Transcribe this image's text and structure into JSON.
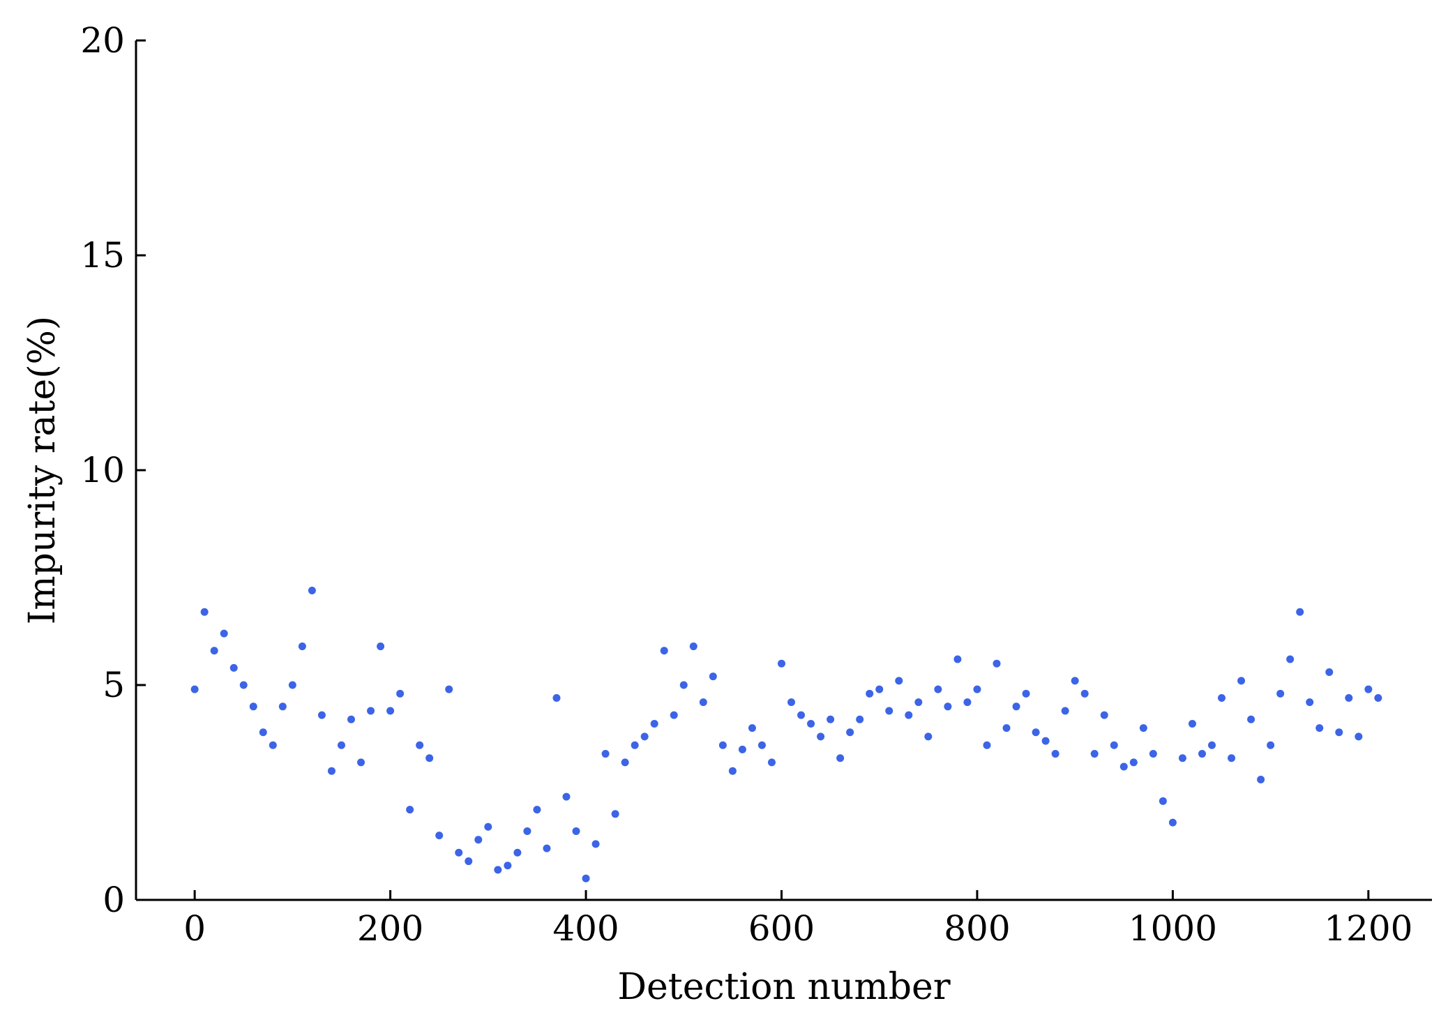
{
  "chart_data": {
    "type": "scatter",
    "xlabel": "Detection number",
    "ylabel": "Impurity rate(%)",
    "xlim": [
      -60,
      1265
    ],
    "ylim": [
      0,
      20
    ],
    "xticks": [
      0,
      200,
      400,
      600,
      800,
      1000,
      1200
    ],
    "yticks": [
      0,
      5,
      10,
      15,
      20
    ],
    "xtick_labels": [
      "0",
      "200",
      "400",
      "600",
      "800",
      "1000",
      "1200"
    ],
    "ytick_labels": [
      "0",
      "5",
      "10",
      "15",
      "20"
    ],
    "grid": false,
    "legend": "none",
    "marker_color": "#3c64e6",
    "series": [
      {
        "x": [
          0,
          10,
          20,
          30,
          40,
          50,
          60,
          70,
          80,
          90,
          100,
          110,
          120,
          130,
          140,
          150,
          160,
          170,
          180,
          190,
          200,
          210,
          220,
          230,
          240,
          250,
          260,
          270,
          280,
          290,
          300,
          310,
          320,
          330,
          340,
          350,
          360,
          370,
          380,
          390,
          400,
          410,
          420,
          430,
          440,
          450,
          460,
          470,
          480,
          490,
          500,
          510,
          520,
          530,
          540,
          550,
          560,
          570,
          580,
          590,
          600,
          610,
          620,
          630,
          640,
          650,
          660,
          670,
          680,
          690,
          700,
          710,
          720,
          730,
          740,
          750,
          760,
          770,
          780,
          790,
          800,
          810,
          820,
          830,
          840,
          850,
          860,
          870,
          880,
          890,
          900,
          910,
          920,
          930,
          940,
          950,
          960,
          970,
          980,
          990,
          1000,
          1010,
          1020,
          1030,
          1040,
          1050,
          1060,
          1070,
          1080,
          1090,
          1100,
          1110,
          1120,
          1130,
          1140,
          1150,
          1160,
          1170,
          1180,
          1190,
          1200,
          1210
        ],
        "y": [
          4.9,
          6.7,
          5.8,
          6.2,
          5.4,
          5.0,
          4.5,
          3.9,
          3.6,
          4.5,
          5.0,
          5.9,
          7.2,
          4.3,
          3.0,
          3.6,
          4.2,
          3.2,
          4.4,
          5.9,
          4.4,
          4.8,
          2.1,
          3.6,
          3.3,
          1.5,
          4.9,
          1.1,
          0.9,
          1.4,
          1.7,
          0.7,
          0.8,
          1.1,
          1.6,
          2.1,
          1.2,
          4.7,
          2.4,
          1.6,
          0.5,
          1.3,
          3.4,
          2.0,
          3.2,
          3.6,
          3.8,
          4.1,
          5.8,
          4.3,
          5.0,
          5.9,
          4.6,
          5.2,
          3.6,
          3.0,
          3.5,
          4.0,
          3.6,
          3.2,
          5.5,
          4.6,
          4.3,
          4.1,
          3.8,
          4.2,
          3.3,
          3.9,
          4.2,
          4.8,
          4.9,
          4.4,
          5.1,
          4.3,
          4.6,
          3.8,
          4.9,
          4.5,
          5.6,
          4.6,
          4.9,
          3.6,
          5.5,
          4.0,
          4.5,
          4.8,
          3.9,
          3.7,
          3.4,
          4.4,
          5.1,
          4.8,
          3.4,
          4.3,
          3.6,
          3.1,
          3.2,
          4.0,
          3.4,
          2.3,
          1.8,
          3.3,
          4.1,
          3.4,
          3.6,
          4.7,
          3.3,
          5.1,
          4.2,
          2.8,
          3.6,
          4.8,
          5.6,
          6.7,
          4.6,
          4.0,
          5.3,
          3.9,
          4.7,
          3.8,
          4.9,
          4.7
        ]
      }
    ]
  }
}
